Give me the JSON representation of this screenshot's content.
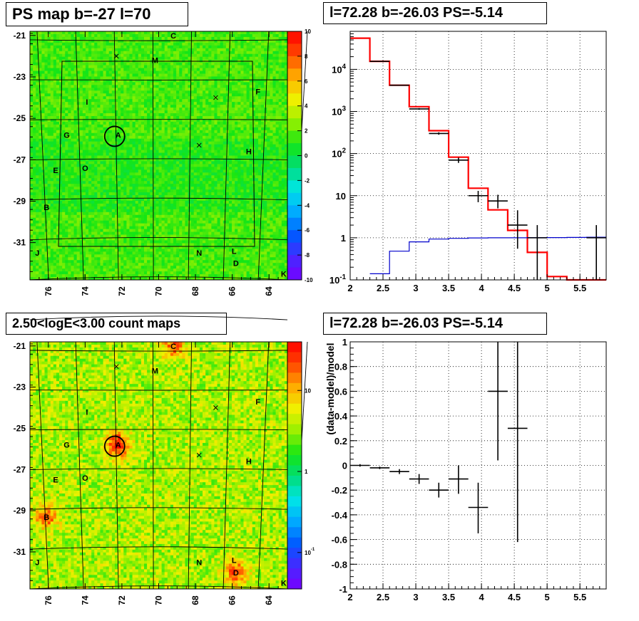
{
  "panels": {
    "tl_title": "PS map b=-27 l=70",
    "tr_title": "l=72.28 b=-26.03 PS=-5.14",
    "bl_title": "2.50<logE<3.00 count maps",
    "br_title": "l=72.28 b=-26.03 PS=-5.14"
  },
  "chart_data": [
    {
      "type": "heatmap",
      "title": "PS map b=-27 l=70",
      "x_ticks": [
        "76",
        "74",
        "72",
        "70",
        "68",
        "66",
        "64"
      ],
      "y_ticks": [
        "-21",
        "-23",
        "-25",
        "-27",
        "-29",
        "-31"
      ],
      "xlim": [
        77,
        63
      ],
      "ylim": [
        -32.8,
        -20.8
      ],
      "colorbar_ticks": [
        "10",
        "8",
        "6",
        "4",
        "2",
        "0",
        "-2",
        "-4",
        "-6",
        "-8",
        "-10"
      ],
      "colorbar_range": [
        -10,
        10
      ],
      "sources": [
        {
          "label": "C",
          "l": 69.2,
          "b": -21.0
        },
        {
          "label": "M",
          "l": 70.2,
          "b": -22.2
        },
        {
          "label": "F",
          "l": 64.6,
          "b": -23.7
        },
        {
          "label": "I",
          "l": 73.9,
          "b": -24.2
        },
        {
          "label": "G",
          "l": 75.0,
          "b": -25.8
        },
        {
          "label": "A",
          "l": 72.2,
          "b": -25.8
        },
        {
          "label": "H",
          "l": 65.1,
          "b": -26.6
        },
        {
          "label": "E",
          "l": 75.6,
          "b": -27.5
        },
        {
          "label": "O",
          "l": 74.0,
          "b": -27.4
        },
        {
          "label": "B",
          "l": 76.1,
          "b": -29.3
        },
        {
          "label": "J",
          "l": 76.6,
          "b": -31.5
        },
        {
          "label": "N",
          "l": 67.8,
          "b": -31.5
        },
        {
          "label": "L",
          "l": 65.9,
          "b": -31.4
        },
        {
          "label": "D",
          "l": 65.8,
          "b": -32.0
        },
        {
          "label": "K",
          "l": 63.2,
          "b": -32.5
        }
      ],
      "crosses": [
        {
          "l": 72.3,
          "b": -22.0
        },
        {
          "l": 66.9,
          "b": -24.0
        },
        {
          "l": 67.8,
          "b": -26.3
        }
      ]
    },
    {
      "type": "line",
      "title": "l=72.28 b=-26.03 PS=-5.14",
      "x_ticks": [
        "2",
        "2.5",
        "3",
        "3.5",
        "4",
        "4.5",
        "5",
        "5.5"
      ],
      "y_ticks": [
        "10^-1",
        "1",
        "10",
        "10^2",
        "10^3",
        "10^4"
      ],
      "xlim": [
        2.0,
        5.9
      ],
      "ylim": [
        0.1,
        80000
      ],
      "yscale": "log",
      "grid": true,
      "series": [
        {
          "color": "#ff0000",
          "edges": [
            2.0,
            2.3,
            2.6,
            2.9,
            3.2,
            3.5,
            3.8,
            4.1,
            4.4,
            4.7,
            5.0,
            5.3,
            5.6,
            5.9
          ],
          "values": [
            55000,
            15500,
            4200,
            1300,
            350,
            82,
            15,
            4.6,
            1.5,
            0.45,
            0.12,
            0.1,
            0.1
          ]
        },
        {
          "color": "#0000cc",
          "edges": [
            2.0,
            2.3,
            2.6,
            2.9,
            3.2,
            3.5,
            3.8,
            4.1,
            4.4,
            4.7,
            5.0,
            5.3,
            5.6,
            5.9
          ],
          "values": [
            0.05,
            0.14,
            0.48,
            0.8,
            0.93,
            0.97,
            0.99,
            1.0,
            1.0,
            1.01,
            1.01,
            1.02,
            1.03
          ]
        }
      ],
      "points": [
        {
          "x": 2.45,
          "y": 15500,
          "xe": 0.15,
          "lo": 15200,
          "hi": 15800
        },
        {
          "x": 2.75,
          "y": 4200,
          "xe": 0.15,
          "lo": 4100,
          "hi": 4300
        },
        {
          "x": 3.05,
          "y": 1150,
          "xe": 0.15,
          "lo": 1100,
          "hi": 1200
        },
        {
          "x": 3.35,
          "y": 300,
          "xe": 0.15,
          "lo": 280,
          "hi": 320
        },
        {
          "x": 3.65,
          "y": 70,
          "xe": 0.15,
          "lo": 60,
          "hi": 80
        },
        {
          "x": 3.95,
          "y": 10,
          "xe": 0.15,
          "lo": 7,
          "hi": 13
        },
        {
          "x": 4.25,
          "y": 7.5,
          "xe": 0.15,
          "lo": 5,
          "hi": 10.5
        },
        {
          "x": 4.55,
          "y": 2.0,
          "xe": 0.15,
          "lo": 0.55,
          "hi": 4.5
        },
        {
          "x": 4.85,
          "y": 1.0,
          "xe": 0.15,
          "lo": 0.08,
          "hi": 2.0
        },
        {
          "x": 5.75,
          "y": 1.0,
          "xe": 0.15,
          "lo": 0.08,
          "hi": 2.0
        }
      ]
    },
    {
      "type": "heatmap",
      "title": "2.50<logE<3.00 count maps",
      "x_ticks": [
        "76",
        "74",
        "72",
        "70",
        "68",
        "66",
        "64"
      ],
      "y_ticks": [
        "-21",
        "-23",
        "-25",
        "-27",
        "-29",
        "-31"
      ],
      "xlim": [
        77,
        63
      ],
      "ylim": [
        -32.8,
        -20.8
      ],
      "colorbar_ticks": [
        "10",
        "1",
        "10^-1"
      ],
      "colorbar_scale": "log",
      "hotspots": [
        {
          "label": "A",
          "l": 72.2,
          "b": -25.8,
          "strength": 1.0
        },
        {
          "label": "B",
          "l": 76.1,
          "b": -29.3,
          "strength": 0.7
        },
        {
          "label": "C",
          "l": 69.2,
          "b": -21.0,
          "strength": 0.7
        },
        {
          "label": "D",
          "l": 65.8,
          "b": -32.0,
          "strength": 0.8
        }
      ],
      "sources": [
        {
          "label": "C",
          "l": 69.2,
          "b": -21.0
        },
        {
          "label": "M",
          "l": 70.2,
          "b": -22.2
        },
        {
          "label": "F",
          "l": 64.6,
          "b": -23.7
        },
        {
          "label": "I",
          "l": 73.9,
          "b": -24.2
        },
        {
          "label": "G",
          "l": 75.0,
          "b": -25.8
        },
        {
          "label": "A",
          "l": 72.2,
          "b": -25.8
        },
        {
          "label": "H",
          "l": 65.1,
          "b": -26.6
        },
        {
          "label": "E",
          "l": 75.6,
          "b": -27.5
        },
        {
          "label": "O",
          "l": 74.0,
          "b": -27.4
        },
        {
          "label": "B",
          "l": 76.1,
          "b": -29.3
        },
        {
          "label": "J",
          "l": 76.6,
          "b": -31.5
        },
        {
          "label": "N",
          "l": 67.8,
          "b": -31.5
        },
        {
          "label": "L",
          "l": 65.9,
          "b": -31.4
        },
        {
          "label": "D",
          "l": 65.8,
          "b": -32.0
        },
        {
          "label": "K",
          "l": 63.2,
          "b": -32.5
        }
      ],
      "crosses": [
        {
          "l": 72.3,
          "b": -22.0
        },
        {
          "l": 66.9,
          "b": -24.0
        },
        {
          "l": 67.8,
          "b": -26.3
        }
      ]
    },
    {
      "type": "scatter",
      "title": "l=72.28 b=-26.03 PS=-5.14",
      "ylabel": "(data-model)/model",
      "x_ticks": [
        "2",
        "2.5",
        "3",
        "3.5",
        "4",
        "4.5",
        "5",
        "5.5"
      ],
      "y_ticks": [
        "-1",
        "-0.8",
        "-0.6",
        "-0.4",
        "-0.2",
        "0",
        "0.2",
        "0.4",
        "0.6",
        "0.8",
        "1"
      ],
      "xlim": [
        2.0,
        5.9
      ],
      "ylim": [
        -1.0,
        1.0
      ],
      "grid": true,
      "points": [
        {
          "x": 2.15,
          "y": 0.0,
          "xe": 0.15,
          "lo": -0.01,
          "hi": 0.01
        },
        {
          "x": 2.45,
          "y": -0.02,
          "xe": 0.15,
          "lo": -0.03,
          "hi": -0.01
        },
        {
          "x": 2.75,
          "y": -0.05,
          "xe": 0.15,
          "lo": -0.07,
          "hi": -0.03
        },
        {
          "x": 3.05,
          "y": -0.11,
          "xe": 0.15,
          "lo": -0.15,
          "hi": -0.07
        },
        {
          "x": 3.35,
          "y": -0.2,
          "xe": 0.15,
          "lo": -0.26,
          "hi": -0.14
        },
        {
          "x": 3.65,
          "y": -0.11,
          "xe": 0.15,
          "lo": -0.23,
          "hi": 0.0
        },
        {
          "x": 3.95,
          "y": -0.34,
          "xe": 0.15,
          "lo": -0.55,
          "hi": -0.14
        },
        {
          "x": 4.25,
          "y": 0.6,
          "xe": 0.15,
          "lo": 0.04,
          "hi": 1.0
        },
        {
          "x": 4.55,
          "y": 0.3,
          "xe": 0.15,
          "lo": -0.62,
          "hi": 1.0
        }
      ]
    }
  ]
}
